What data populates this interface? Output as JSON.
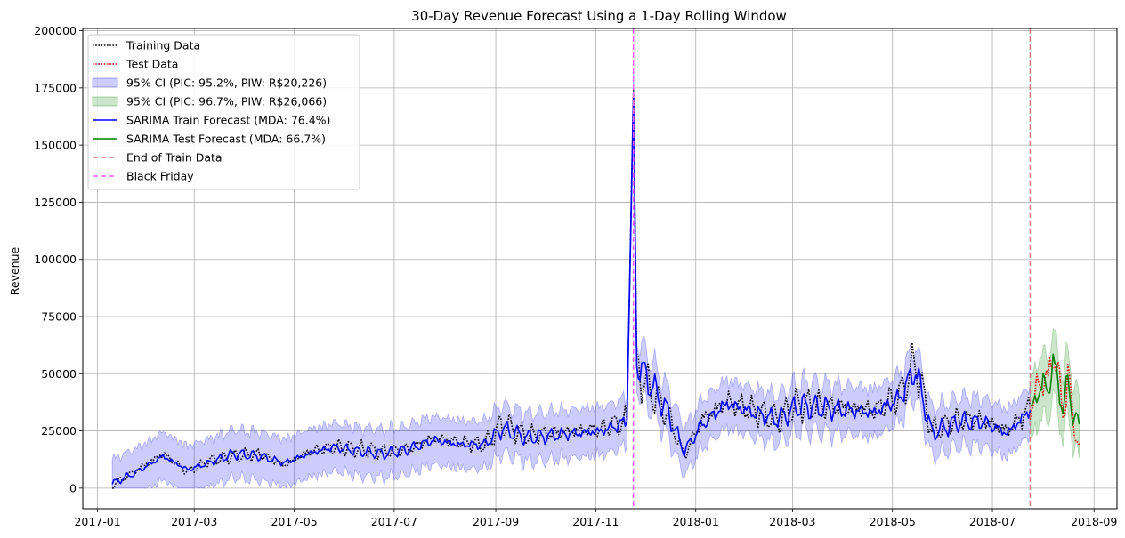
{
  "chart_data": {
    "type": "line",
    "title": "30-Day Revenue Forecast Using a 1-Day Rolling Window",
    "xlabel": "",
    "ylabel": "Revenue",
    "xlim": [
      "2016-12-23",
      "2018-09-15"
    ],
    "ylim": [
      -9000,
      201000
    ],
    "x_ticks": [
      "2017-01",
      "2017-03",
      "2017-05",
      "2017-07",
      "2017-09",
      "2017-11",
      "2018-01",
      "2018-03",
      "2018-05",
      "2018-07",
      "2018-09"
    ],
    "y_ticks": [
      0,
      25000,
      50000,
      75000,
      100000,
      125000,
      150000,
      175000,
      200000
    ],
    "grid": true,
    "legend_position": "top-left",
    "markers": [
      {
        "name": "End of Train Data",
        "date": "2018-07-24",
        "color": "#cd7f7f"
      },
      {
        "name": "Black Friday",
        "date": "2017-11-24",
        "color": "#ff66ff"
      }
    ],
    "train_start": "2017-01-10",
    "train_end": "2018-07-24",
    "test_end": "2018-08-23",
    "series": [
      {
        "name": "Training Data",
        "style": "dotted",
        "color": "#000000",
        "points": [
          [
            "2017-01-10",
            1000
          ],
          [
            "2017-01-25",
            8000
          ],
          [
            "2017-02-10",
            15000
          ],
          [
            "2017-02-25",
            7000
          ],
          [
            "2017-03-10",
            12000
          ],
          [
            "2017-03-25",
            14000
          ],
          [
            "2017-04-10",
            15000
          ],
          [
            "2017-04-25",
            10000
          ],
          [
            "2017-05-10",
            16000
          ],
          [
            "2017-05-25",
            18000
          ],
          [
            "2017-06-10",
            17000
          ],
          [
            "2017-06-25",
            16000
          ],
          [
            "2017-07-10",
            17000
          ],
          [
            "2017-07-25",
            22000
          ],
          [
            "2017-08-10",
            20000
          ],
          [
            "2017-08-25",
            19000
          ],
          [
            "2017-09-05",
            28000
          ],
          [
            "2017-09-20",
            23000
          ],
          [
            "2017-10-05",
            24000
          ],
          [
            "2017-10-20",
            25000
          ],
          [
            "2017-11-05",
            26000
          ],
          [
            "2017-11-20",
            30000
          ],
          [
            "2017-11-24",
            175000
          ],
          [
            "2017-11-26",
            52000
          ],
          [
            "2017-12-05",
            42000
          ],
          [
            "2017-12-15",
            32000
          ],
          [
            "2017-12-25",
            14000
          ],
          [
            "2018-01-05",
            30000
          ],
          [
            "2018-01-20",
            38000
          ],
          [
            "2018-02-05",
            34000
          ],
          [
            "2018-02-20",
            30000
          ],
          [
            "2018-03-05",
            37000
          ],
          [
            "2018-03-20",
            36000
          ],
          [
            "2018-04-05",
            35000
          ],
          [
            "2018-04-20",
            34000
          ],
          [
            "2018-05-05",
            40000
          ],
          [
            "2018-05-15",
            55000
          ],
          [
            "2018-05-25",
            25000
          ],
          [
            "2018-06-10",
            30000
          ],
          [
            "2018-06-25",
            30000
          ],
          [
            "2018-07-10",
            25000
          ],
          [
            "2018-07-24",
            35000
          ]
        ]
      },
      {
        "name": "Test Data",
        "style": "dotted",
        "color": "#ff0000",
        "points": [
          [
            "2018-07-24",
            35000
          ],
          [
            "2018-07-28",
            42000
          ],
          [
            "2018-08-01",
            50000
          ],
          [
            "2018-08-04",
            44000
          ],
          [
            "2018-08-07",
            62000
          ],
          [
            "2018-08-10",
            48000
          ],
          [
            "2018-08-13",
            33000
          ],
          [
            "2018-08-16",
            50000
          ],
          [
            "2018-08-19",
            30000
          ],
          [
            "2018-08-23",
            19000
          ]
        ]
      },
      {
        "name": "SARIMA Train Forecast (MDA: 76.4%)",
        "style": "solid",
        "color": "#0000ff",
        "points": [
          [
            "2017-01-10",
            2000
          ],
          [
            "2017-01-25",
            7000
          ],
          [
            "2017-02-10",
            14000
          ],
          [
            "2017-02-25",
            8000
          ],
          [
            "2017-03-10",
            11000
          ],
          [
            "2017-03-25",
            15000
          ],
          [
            "2017-04-10",
            14000
          ],
          [
            "2017-04-25",
            11000
          ],
          [
            "2017-05-10",
            15000
          ],
          [
            "2017-05-25",
            18000
          ],
          [
            "2017-06-10",
            16000
          ],
          [
            "2017-06-25",
            15000
          ],
          [
            "2017-07-10",
            17000
          ],
          [
            "2017-07-25",
            21000
          ],
          [
            "2017-08-10",
            19000
          ],
          [
            "2017-08-25",
            19000
          ],
          [
            "2017-09-05",
            26000
          ],
          [
            "2017-09-20",
            22000
          ],
          [
            "2017-10-05",
            23000
          ],
          [
            "2017-10-20",
            24000
          ],
          [
            "2017-11-05",
            25000
          ],
          [
            "2017-11-20",
            29000
          ],
          [
            "2017-11-24",
            172000
          ],
          [
            "2017-11-26",
            55000
          ],
          [
            "2017-12-05",
            45000
          ],
          [
            "2017-12-15",
            33000
          ],
          [
            "2017-12-25",
            16000
          ],
          [
            "2018-01-05",
            28000
          ],
          [
            "2018-01-20",
            37000
          ],
          [
            "2018-02-05",
            33000
          ],
          [
            "2018-02-20",
            30000
          ],
          [
            "2018-03-05",
            36000
          ],
          [
            "2018-03-20",
            35000
          ],
          [
            "2018-04-05",
            34000
          ],
          [
            "2018-04-20",
            33000
          ],
          [
            "2018-05-05",
            39000
          ],
          [
            "2018-05-15",
            52000
          ],
          [
            "2018-05-25",
            24000
          ],
          [
            "2018-06-10",
            29000
          ],
          [
            "2018-06-25",
            29000
          ],
          [
            "2018-07-10",
            24000
          ],
          [
            "2018-07-24",
            34000
          ]
        ]
      },
      {
        "name": "SARIMA Test Forecast (MDA: 66.7%)",
        "style": "solid",
        "color": "#008000",
        "points": [
          [
            "2018-07-24",
            34000
          ],
          [
            "2018-07-28",
            40000
          ],
          [
            "2018-08-01",
            46000
          ],
          [
            "2018-08-04",
            42000
          ],
          [
            "2018-08-07",
            56000
          ],
          [
            "2018-08-10",
            45000
          ],
          [
            "2018-08-13",
            35000
          ],
          [
            "2018-08-16",
            46000
          ],
          [
            "2018-08-19",
            33000
          ],
          [
            "2018-08-23",
            28000
          ]
        ]
      }
    ],
    "bands": [
      {
        "name": "95% CI (PIC: 95.2%, PIW: R$20,226)",
        "color": "#0000ff",
        "half_width": 10113,
        "follows": "SARIMA Train Forecast (MDA: 76.4%)"
      },
      {
        "name": "95% CI (PIC: 96.7%, PIW: R$26,066)",
        "color": "#008000",
        "half_width": 13033,
        "follows": "SARIMA Test Forecast (MDA: 66.7%)"
      }
    ],
    "legend": [
      "Training Data",
      "Test Data",
      "95% CI (PIC: 95.2%, PIW: R$20,226)",
      "95% CI (PIC: 96.7%, PIW: R$26,066)",
      "SARIMA Train Forecast (MDA: 76.4%)",
      "SARIMA Test Forecast (MDA: 66.7%)",
      "End of Train Data",
      "Black Friday"
    ]
  }
}
